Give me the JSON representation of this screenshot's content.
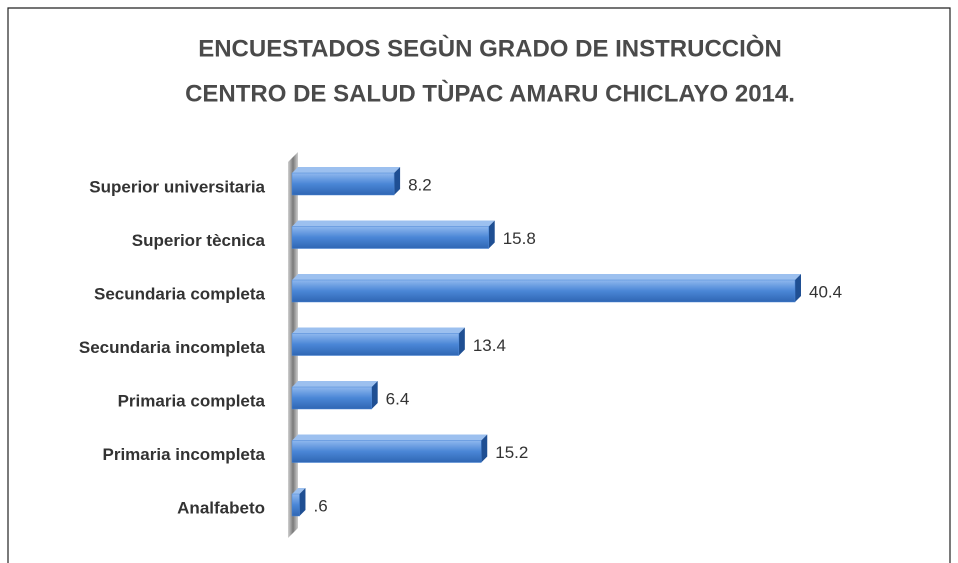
{
  "chart_data": {
    "type": "bar",
    "orientation": "horizontal",
    "title": [
      "ENCUESTADOS SEGÙN GRADO DE INSTRUCCIÒN",
      "CENTRO DE SALUD TÙPAC AMARU CHICLAYO 2014."
    ],
    "categories": [
      "Superior universitaria",
      "Superior tècnica",
      "Secundaria completa",
      "Secundaria incompleta",
      "Primaria completa",
      "Primaria incompleta",
      "Analfabeto"
    ],
    "values": [
      8.2,
      15.8,
      40.4,
      13.4,
      6.4,
      15.2,
      0.6
    ],
    "value_labels": [
      "8.2",
      "15.8",
      "40.4",
      "13.4",
      "6.4",
      "15.2",
      ".6"
    ],
    "color": "#4a86d6"
  }
}
